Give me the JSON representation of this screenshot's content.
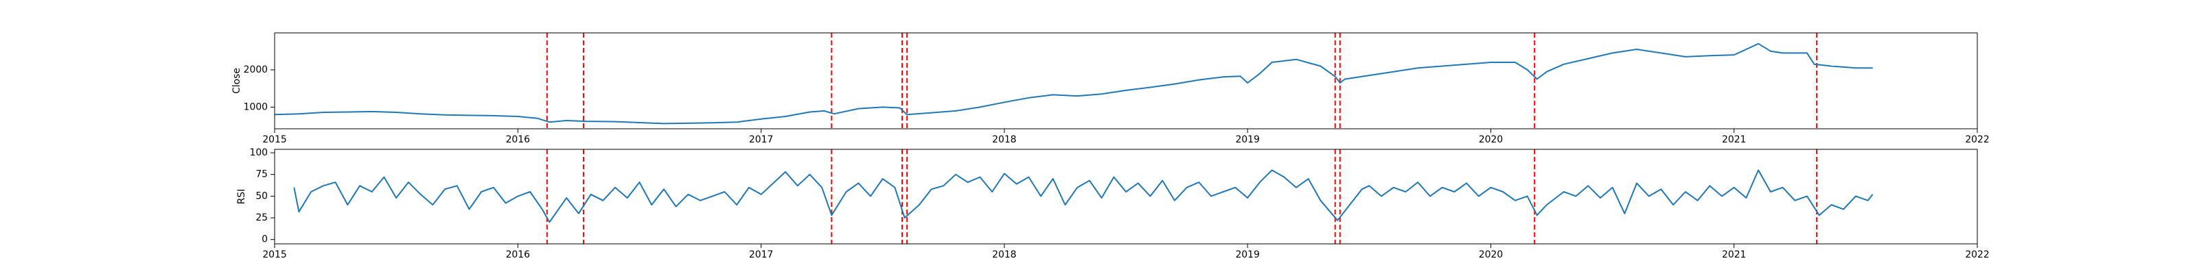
{
  "chart_data": [
    {
      "type": "line",
      "ylabel": "Close",
      "xlim": [
        2015.0,
        2022.0
      ],
      "ylim": [
        420,
        2990
      ],
      "x_ticks": [
        2015,
        2016,
        2017,
        2018,
        2019,
        2020,
        2021,
        2022
      ],
      "x_tick_labels": [
        "2015",
        "2016",
        "2017",
        "2018",
        "2019",
        "2020",
        "2021",
        "2022"
      ],
      "y_ticks": [
        1000,
        2000
      ],
      "y_tick_labels": [
        "1000",
        "2000"
      ],
      "grid": false,
      "color": "#1f77b4",
      "series": [
        {
          "x": [
            2015.0,
            2015.1,
            2015.2,
            2015.3,
            2015.4,
            2015.5,
            2015.6,
            2015.7,
            2015.8,
            2015.9,
            2016.0,
            2016.08,
            2016.13,
            2016.2,
            2016.28,
            2016.4,
            2016.6,
            2016.8,
            2016.9,
            2017.0,
            2017.1,
            2017.2,
            2017.26,
            2017.3,
            2017.4,
            2017.5,
            2017.57,
            2017.6,
            2017.7,
            2017.8,
            2017.9,
            2018.0,
            2018.1,
            2018.2,
            2018.3,
            2018.4,
            2018.5,
            2018.6,
            2018.7,
            2018.8,
            2018.9,
            2018.97,
            2019.0,
            2019.05,
            2019.1,
            2019.2,
            2019.3,
            2019.36,
            2019.38,
            2019.4,
            2019.5,
            2019.6,
            2019.7,
            2019.8,
            2019.9,
            2020.0,
            2020.1,
            2020.15,
            2020.19,
            2020.23,
            2020.3,
            2020.4,
            2020.5,
            2020.6,
            2020.7,
            2020.8,
            2020.9,
            2021.0,
            2021.05,
            2021.1,
            2021.15,
            2021.2,
            2021.3,
            2021.33,
            2021.4,
            2021.5,
            2021.57
          ],
          "y": [
            800,
            820,
            860,
            870,
            880,
            860,
            820,
            790,
            780,
            770,
            750,
            700,
            600,
            640,
            620,
            610,
            560,
            580,
            600,
            680,
            750,
            870,
            900,
            820,
            960,
            1000,
            980,
            800,
            850,
            900,
            1000,
            1130,
            1250,
            1330,
            1300,
            1350,
            1450,
            1530,
            1620,
            1730,
            1810,
            1830,
            1650,
            1900,
            2200,
            2280,
            2100,
            1820,
            1650,
            1750,
            1850,
            1950,
            2050,
            2100,
            2150,
            2200,
            2200,
            2000,
            1750,
            1950,
            2150,
            2300,
            2450,
            2550,
            2450,
            2350,
            2380,
            2400,
            2550,
            2700,
            2500,
            2450,
            2450,
            2150,
            2100,
            2050,
            2050
          ]
        }
      ],
      "vlines_x": [
        2016.12,
        2016.27,
        2017.29,
        2017.58,
        2017.6,
        2019.36,
        2019.38,
        2020.18,
        2021.34
      ],
      "vline_color": "#ff0000"
    },
    {
      "type": "line",
      "ylabel": "RSI",
      "xlim": [
        2015.0,
        2022.0
      ],
      "ylim": [
        -5,
        104
      ],
      "x_ticks": [
        2015,
        2016,
        2017,
        2018,
        2019,
        2020,
        2021,
        2022
      ],
      "x_tick_labels": [
        "2015",
        "2016",
        "2017",
        "2018",
        "2019",
        "2020",
        "2021",
        "2022"
      ],
      "y_ticks": [
        0,
        25,
        50,
        75,
        100
      ],
      "y_tick_labels": [
        "0",
        "25",
        "50",
        "75",
        "100"
      ],
      "grid": false,
      "color": "#1f77b4",
      "series": [
        {
          "x": [
            2015.08,
            2015.1,
            2015.15,
            2015.2,
            2015.25,
            2015.3,
            2015.35,
            2015.4,
            2015.45,
            2015.5,
            2015.55,
            2015.6,
            2015.65,
            2015.7,
            2015.75,
            2015.8,
            2015.85,
            2015.9,
            2015.95,
            2016.0,
            2016.05,
            2016.1,
            2016.13,
            2016.2,
            2016.25,
            2016.3,
            2016.35,
            2016.4,
            2016.45,
            2016.5,
            2016.55,
            2016.6,
            2016.65,
            2016.7,
            2016.75,
            2016.8,
            2016.85,
            2016.9,
            2016.95,
            2017.0,
            2017.05,
            2017.1,
            2017.15,
            2017.2,
            2017.25,
            2017.29,
            2017.35,
            2017.4,
            2017.45,
            2017.5,
            2017.55,
            2017.59,
            2017.65,
            2017.7,
            2017.75,
            2017.8,
            2017.85,
            2017.9,
            2017.95,
            2018.0,
            2018.05,
            2018.1,
            2018.15,
            2018.2,
            2018.25,
            2018.3,
            2018.35,
            2018.4,
            2018.45,
            2018.5,
            2018.55,
            2018.6,
            2018.65,
            2018.7,
            2018.75,
            2018.8,
            2018.85,
            2018.9,
            2018.95,
            2019.0,
            2019.05,
            2019.1,
            2019.15,
            2019.2,
            2019.25,
            2019.3,
            2019.37,
            2019.42,
            2019.47,
            2019.5,
            2019.55,
            2019.6,
            2019.65,
            2019.7,
            2019.75,
            2019.8,
            2019.85,
            2019.9,
            2019.95,
            2020.0,
            2020.05,
            2020.1,
            2020.15,
            2020.19,
            2020.23,
            2020.3,
            2020.35,
            2020.4,
            2020.45,
            2020.5,
            2020.55,
            2020.6,
            2020.65,
            2020.7,
            2020.75,
            2020.8,
            2020.85,
            2020.9,
            2020.95,
            2021.0,
            2021.05,
            2021.1,
            2021.15,
            2021.2,
            2021.25,
            2021.3,
            2021.35,
            2021.4,
            2021.45,
            2021.5,
            2021.55,
            2021.57
          ],
          "y": [
            60,
            32,
            55,
            62,
            66,
            40,
            62,
            55,
            72,
            48,
            66,
            52,
            40,
            58,
            62,
            35,
            55,
            60,
            42,
            50,
            55,
            35,
            20,
            48,
            30,
            52,
            45,
            60,
            48,
            66,
            40,
            58,
            38,
            52,
            45,
            50,
            55,
            40,
            60,
            52,
            65,
            78,
            62,
            75,
            60,
            28,
            55,
            65,
            50,
            70,
            60,
            25,
            40,
            58,
            62,
            75,
            66,
            72,
            55,
            76,
            64,
            72,
            50,
            70,
            40,
            60,
            68,
            48,
            72,
            55,
            65,
            50,
            68,
            45,
            60,
            66,
            50,
            55,
            60,
            48,
            66,
            80,
            72,
            60,
            70,
            45,
            22,
            40,
            58,
            62,
            50,
            60,
            55,
            66,
            50,
            60,
            55,
            65,
            50,
            60,
            55,
            45,
            50,
            28,
            40,
            55,
            50,
            62,
            48,
            60,
            30,
            65,
            50,
            58,
            40,
            55,
            45,
            62,
            50,
            60,
            48,
            80,
            55,
            60,
            45,
            50,
            28,
            40,
            35,
            50,
            45,
            52
          ]
        }
      ],
      "vlines_x": [
        2016.12,
        2016.27,
        2017.29,
        2017.58,
        2017.6,
        2019.36,
        2019.38,
        2020.18,
        2021.34
      ],
      "vline_color": "#ff0000"
    }
  ]
}
